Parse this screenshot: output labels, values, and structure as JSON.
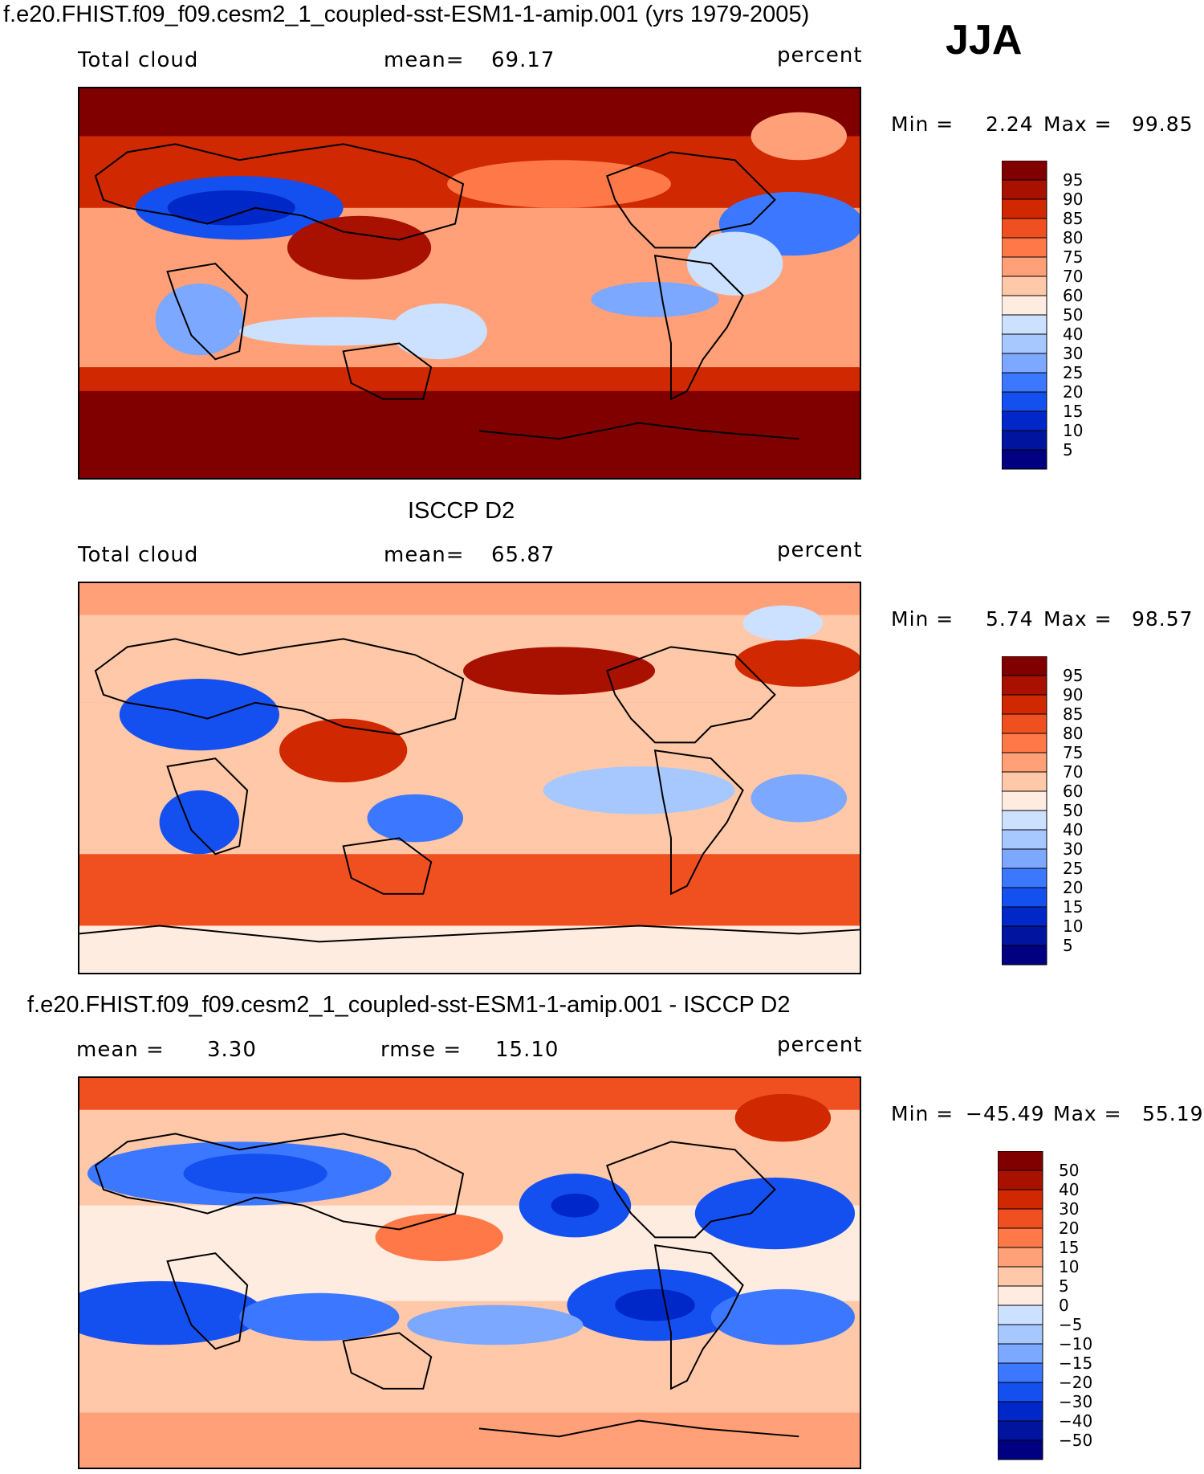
{
  "header": {
    "case_title": "f.e20.FHIST.f09_f09.cesm2_1_coupled-sst-ESM1-1-amip.001 (yrs 1979-2005)",
    "season": "JJA"
  },
  "panels": [
    {
      "title": "",
      "left": "Total cloud",
      "center_label": "mean=",
      "center_value": "69.17",
      "right": "percent",
      "min_label": "Min =",
      "min_value": "2.24",
      "max_label": "Max =",
      "max_value": "99.85"
    },
    {
      "title": "ISCCP D2",
      "left": "Total cloud",
      "center_label": "mean=",
      "center_value": "65.87",
      "right": "percent",
      "min_label": "Min =",
      "min_value": "5.74",
      "max_label": "Max =",
      "max_value": "98.57"
    },
    {
      "title": "f.e20.FHIST.f09_f09.cesm2_1_coupled-sst-ESM1-1-amip.001 - ISCCP D2",
      "left_label": "mean =",
      "left_value": "3.30",
      "center_label": "rmse =",
      "center_value": "15.10",
      "right": "percent",
      "min_label": "Min =",
      "min_value": "−45.49",
      "max_label": "Max =",
      "max_value": "55.19"
    }
  ],
  "colors": {
    "levels_abs": [
      "#000080",
      "#0014a0",
      "#0028c8",
      "#1450f0",
      "#3c78ff",
      "#7ca8ff",
      "#a6c8ff",
      "#cce0ff",
      "#ffece0",
      "#ffc8a8",
      "#ffa078",
      "#ff7848",
      "#f05020",
      "#d02800",
      "#a81000",
      "#800000"
    ],
    "levels_diff": [
      "#000080",
      "#0014a0",
      "#0028c8",
      "#1450f0",
      "#3c78ff",
      "#7ca8ff",
      "#a6c8ff",
      "#cce0ff",
      "#ffece0",
      "#ffc8a8",
      "#ffa078",
      "#ff7848",
      "#f05020",
      "#d02800",
      "#a81000",
      "#800000"
    ]
  },
  "chart_data": [
    {
      "type": "heatmap",
      "title": "Total cloud",
      "units": "percent",
      "mean": 69.17,
      "min": 2.24,
      "max": 99.85,
      "colorbar_levels": [
        95,
        90,
        85,
        80,
        75,
        70,
        60,
        50,
        40,
        30,
        25,
        20,
        15,
        10,
        5
      ]
    },
    {
      "type": "heatmap",
      "title": "Total cloud",
      "units": "percent",
      "mean": 65.87,
      "min": 5.74,
      "max": 98.57,
      "colorbar_levels": [
        95,
        90,
        85,
        80,
        75,
        70,
        60,
        50,
        40,
        30,
        25,
        20,
        15,
        10,
        5
      ]
    },
    {
      "type": "heatmap",
      "title": "f.e20.FHIST.f09_f09.cesm2_1_coupled-sst-ESM1-1-amip.001 - ISCCP D2",
      "units": "percent",
      "mean": 3.3,
      "rmse": 15.1,
      "min": -45.49,
      "max": 55.19,
      "colorbar_levels": [
        "50",
        "40",
        "30",
        "20",
        "15",
        "10",
        "5",
        "0",
        "−5",
        "−10",
        "−15",
        "−20",
        "−30",
        "−40",
        "−50"
      ]
    }
  ]
}
